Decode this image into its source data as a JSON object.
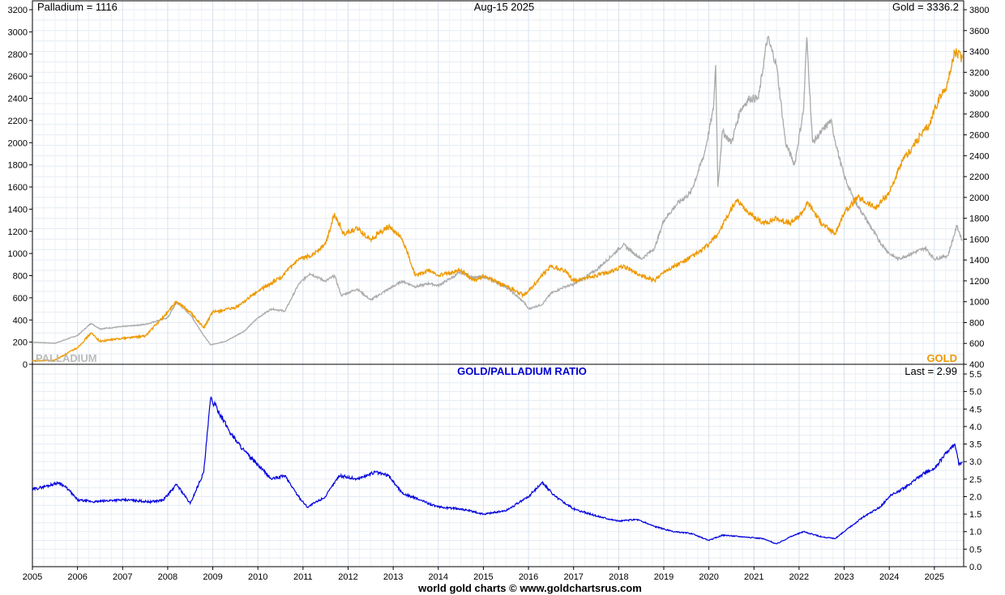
{
  "chart_data": [
    {
      "type": "line",
      "header": {
        "left": "Palladium = 1116",
        "center": "Aug-15  2025",
        "right": "Gold = 3336.2"
      },
      "left_axis": {
        "min": 0,
        "max": 3200,
        "step": 200
      },
      "right_axis": {
        "min": 400,
        "max": 3800,
        "step": 200
      },
      "x_years": [
        "2005",
        "2006",
        "2007",
        "2008",
        "2009",
        "2010",
        "2011",
        "2012",
        "2013",
        "2014",
        "2015",
        "2016",
        "2017",
        "2018",
        "2019",
        "2020",
        "2021",
        "2022",
        "2023",
        "2024",
        "2025"
      ],
      "grid": true,
      "series": [
        {
          "name": "PALLADIUM",
          "axis": "left",
          "color": "#aaaaaa",
          "points": [
            [
              2005.0,
              200
            ],
            [
              2005.5,
              190
            ],
            [
              2006.0,
              260
            ],
            [
              2006.3,
              370
            ],
            [
              2006.5,
              320
            ],
            [
              2007.0,
              340
            ],
            [
              2007.5,
              360
            ],
            [
              2008.0,
              420
            ],
            [
              2008.2,
              560
            ],
            [
              2008.5,
              450
            ],
            [
              2008.8,
              260
            ],
            [
              2008.95,
              175
            ],
            [
              2009.3,
              210
            ],
            [
              2009.7,
              300
            ],
            [
              2010.0,
              420
            ],
            [
              2010.3,
              500
            ],
            [
              2010.6,
              480
            ],
            [
              2010.9,
              720
            ],
            [
              2011.15,
              820
            ],
            [
              2011.5,
              750
            ],
            [
              2011.7,
              800
            ],
            [
              2011.85,
              620
            ],
            [
              2012.2,
              680
            ],
            [
              2012.5,
              580
            ],
            [
              2012.9,
              680
            ],
            [
              2013.2,
              750
            ],
            [
              2013.5,
              700
            ],
            [
              2013.8,
              730
            ],
            [
              2014.0,
              710
            ],
            [
              2014.5,
              830
            ],
            [
              2014.8,
              780
            ],
            [
              2015.0,
              790
            ],
            [
              2015.5,
              700
            ],
            [
              2015.9,
              560
            ],
            [
              2016.0,
              500
            ],
            [
              2016.3,
              540
            ],
            [
              2016.5,
              640
            ],
            [
              2016.8,
              700
            ],
            [
              2017.0,
              720
            ],
            [
              2017.5,
              850
            ],
            [
              2017.9,
              1000
            ],
            [
              2018.1,
              1080
            ],
            [
              2018.5,
              950
            ],
            [
              2018.8,
              1050
            ],
            [
              2019.0,
              1300
            ],
            [
              2019.3,
              1450
            ],
            [
              2019.6,
              1550
            ],
            [
              2019.9,
              1900
            ],
            [
              2020.1,
              2300
            ],
            [
              2020.15,
              2700
            ],
            [
              2020.2,
              1600
            ],
            [
              2020.3,
              2100
            ],
            [
              2020.5,
              2000
            ],
            [
              2020.7,
              2300
            ],
            [
              2020.9,
              2400
            ],
            [
              2021.1,
              2400
            ],
            [
              2021.3,
              2950
            ],
            [
              2021.5,
              2700
            ],
            [
              2021.7,
              2000
            ],
            [
              2021.9,
              1800
            ],
            [
              2022.1,
              2300
            ],
            [
              2022.17,
              2950
            ],
            [
              2022.3,
              2000
            ],
            [
              2022.5,
              2100
            ],
            [
              2022.7,
              2200
            ],
            [
              2022.9,
              1850
            ],
            [
              2023.0,
              1700
            ],
            [
              2023.2,
              1500
            ],
            [
              2023.5,
              1300
            ],
            [
              2023.8,
              1100
            ],
            [
              2024.0,
              1000
            ],
            [
              2024.2,
              950
            ],
            [
              2024.5,
              1000
            ],
            [
              2024.8,
              1050
            ],
            [
              2025.0,
              950
            ],
            [
              2025.3,
              980
            ],
            [
              2025.5,
              1250
            ],
            [
              2025.62,
              1116
            ]
          ]
        },
        {
          "name": "GOLD",
          "axis": "right",
          "color": "#ee9900",
          "points": [
            [
              2005.0,
              430
            ],
            [
              2005.5,
              440
            ],
            [
              2006.0,
              560
            ],
            [
              2006.3,
              700
            ],
            [
              2006.5,
              620
            ],
            [
              2007.0,
              650
            ],
            [
              2007.5,
              670
            ],
            [
              2008.0,
              900
            ],
            [
              2008.2,
              1000
            ],
            [
              2008.5,
              900
            ],
            [
              2008.8,
              750
            ],
            [
              2009.0,
              900
            ],
            [
              2009.5,
              940
            ],
            [
              2010.0,
              1100
            ],
            [
              2010.5,
              1230
            ],
            [
              2010.9,
              1400
            ],
            [
              2011.2,
              1450
            ],
            [
              2011.5,
              1550
            ],
            [
              2011.7,
              1850
            ],
            [
              2011.9,
              1650
            ],
            [
              2012.2,
              1700
            ],
            [
              2012.5,
              1600
            ],
            [
              2012.9,
              1720
            ],
            [
              2013.2,
              1600
            ],
            [
              2013.5,
              1250
            ],
            [
              2013.8,
              1300
            ],
            [
              2014.0,
              1250
            ],
            [
              2014.5,
              1300
            ],
            [
              2014.8,
              1200
            ],
            [
              2015.0,
              1250
            ],
            [
              2015.5,
              1150
            ],
            [
              2015.9,
              1060
            ],
            [
              2016.0,
              1100
            ],
            [
              2016.3,
              1250
            ],
            [
              2016.5,
              1340
            ],
            [
              2016.8,
              1300
            ],
            [
              2017.0,
              1200
            ],
            [
              2017.5,
              1250
            ],
            [
              2017.9,
              1300
            ],
            [
              2018.1,
              1340
            ],
            [
              2018.5,
              1250
            ],
            [
              2018.8,
              1200
            ],
            [
              2019.0,
              1290
            ],
            [
              2019.5,
              1400
            ],
            [
              2019.8,
              1480
            ],
            [
              2020.0,
              1550
            ],
            [
              2020.2,
              1650
            ],
            [
              2020.6,
              1970
            ],
            [
              2020.9,
              1850
            ],
            [
              2021.2,
              1750
            ],
            [
              2021.5,
              1800
            ],
            [
              2021.8,
              1750
            ],
            [
              2022.0,
              1820
            ],
            [
              2022.2,
              1950
            ],
            [
              2022.5,
              1750
            ],
            [
              2022.8,
              1650
            ],
            [
              2023.0,
              1850
            ],
            [
              2023.3,
              2000
            ],
            [
              2023.7,
              1900
            ],
            [
              2024.0,
              2050
            ],
            [
              2024.3,
              2350
            ],
            [
              2024.7,
              2600
            ],
            [
              2024.9,
              2700
            ],
            [
              2025.0,
              2850
            ],
            [
              2025.3,
              3100
            ],
            [
              2025.45,
              3400
            ],
            [
              2025.62,
              3336.2
            ]
          ]
        }
      ],
      "series_labels": {
        "left": "PALLADIUM",
        "right": "GOLD"
      }
    },
    {
      "type": "line",
      "title": "GOLD/PALLADIUM RATIO",
      "last_label": "Last = 2.99",
      "right_axis": {
        "min": 0,
        "max": 5.5,
        "step": 0.5
      },
      "grid": true,
      "series": [
        {
          "name": "GOLD/PALLADIUM RATIO",
          "axis": "right",
          "color": "#0000dd",
          "points": [
            [
              2005.0,
              2.2
            ],
            [
              2005.3,
              2.3
            ],
            [
              2005.6,
              2.4
            ],
            [
              2005.8,
              2.2
            ],
            [
              2006.0,
              1.9
            ],
            [
              2006.4,
              1.85
            ],
            [
              2006.8,
              1.9
            ],
            [
              2007.2,
              1.9
            ],
            [
              2007.6,
              1.85
            ],
            [
              2007.9,
              1.9
            ],
            [
              2008.2,
              2.35
            ],
            [
              2008.5,
              1.8
            ],
            [
              2008.8,
              2.7
            ],
            [
              2008.95,
              4.8
            ],
            [
              2009.1,
              4.5
            ],
            [
              2009.4,
              3.8
            ],
            [
              2009.7,
              3.3
            ],
            [
              2010.0,
              2.9
            ],
            [
              2010.3,
              2.5
            ],
            [
              2010.6,
              2.6
            ],
            [
              2010.9,
              2.0
            ],
            [
              2011.1,
              1.7
            ],
            [
              2011.5,
              2.0
            ],
            [
              2011.8,
              2.6
            ],
            [
              2012.2,
              2.5
            ],
            [
              2012.6,
              2.7
            ],
            [
              2012.9,
              2.6
            ],
            [
              2013.2,
              2.1
            ],
            [
              2013.6,
              1.9
            ],
            [
              2014.0,
              1.7
            ],
            [
              2014.5,
              1.65
            ],
            [
              2015.0,
              1.5
            ],
            [
              2015.5,
              1.6
            ],
            [
              2016.0,
              2.0
            ],
            [
              2016.3,
              2.4
            ],
            [
              2016.6,
              2.0
            ],
            [
              2017.0,
              1.65
            ],
            [
              2017.5,
              1.45
            ],
            [
              2018.0,
              1.3
            ],
            [
              2018.4,
              1.35
            ],
            [
              2018.8,
              1.15
            ],
            [
              2019.2,
              1.0
            ],
            [
              2019.6,
              0.95
            ],
            [
              2020.0,
              0.75
            ],
            [
              2020.3,
              0.9
            ],
            [
              2020.8,
              0.85
            ],
            [
              2021.2,
              0.8
            ],
            [
              2021.5,
              0.65
            ],
            [
              2021.8,
              0.85
            ],
            [
              2022.1,
              1.0
            ],
            [
              2022.5,
              0.85
            ],
            [
              2022.8,
              0.8
            ],
            [
              2023.0,
              1.0
            ],
            [
              2023.4,
              1.4
            ],
            [
              2023.8,
              1.7
            ],
            [
              2024.0,
              2.0
            ],
            [
              2024.4,
              2.3
            ],
            [
              2024.8,
              2.7
            ],
            [
              2025.0,
              2.8
            ],
            [
              2025.3,
              3.3
            ],
            [
              2025.45,
              3.5
            ],
            [
              2025.55,
              2.9
            ],
            [
              2025.62,
              2.99
            ]
          ]
        }
      ]
    }
  ],
  "footer": "world gold charts © www.goldchartsrus.com"
}
